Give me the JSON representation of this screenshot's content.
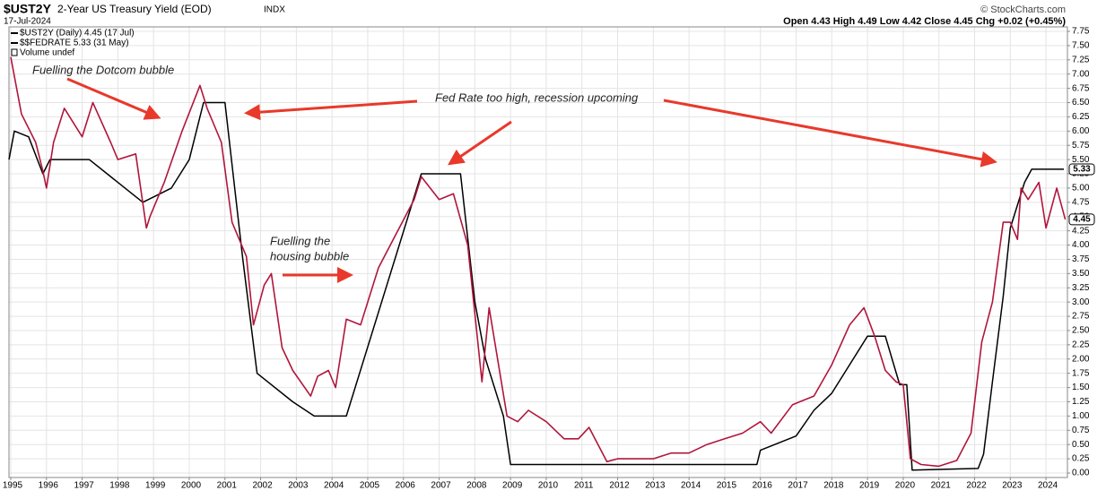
{
  "chart_data": {
    "type": "line",
    "title": "$UST2Y",
    "subtitle": "2-Year US Treasury Yield (EOD)",
    "exchange": "INDX",
    "date": "17-Jul-2024",
    "credit": "© StockCharts.com",
    "quote": "Open 4.43 High 4.49 Low 4.42 Close 4.45 Chg +0.02 (+0.45%)",
    "volume_note": "Volume undef",
    "annotations": [
      "Fuelling the Dotcom bubble",
      "Fed Rate too high, recession upcoming",
      "Fuelling the",
      "housing bubble"
    ],
    "grid": true,
    "y_axis_side": "right",
    "log_scale": false,
    "xlim": [
      1994.95,
      2024.6
    ],
    "xticks": [
      1995,
      1996,
      1997,
      1998,
      1999,
      2000,
      2001,
      2002,
      2003,
      2004,
      2005,
      2006,
      2007,
      2008,
      2009,
      2010,
      2011,
      2012,
      2013,
      2014,
      2015,
      2016,
      2017,
      2018,
      2019,
      2020,
      2021,
      2022,
      2023,
      2024
    ],
    "ylim": [
      0,
      7.75
    ],
    "yticks": [
      {
        "value": 0,
        "label": "0.00"
      },
      {
        "value": 0.25,
        "label": "0.25"
      },
      {
        "value": 0.5,
        "label": "0.50"
      },
      {
        "value": 0.75,
        "label": "0.75"
      },
      {
        "value": 1,
        "label": "1.00"
      },
      {
        "value": 1.25,
        "label": "1.25"
      },
      {
        "value": 1.5,
        "label": "1.50"
      },
      {
        "value": 1.75,
        "label": "1.75"
      },
      {
        "value": 2,
        "label": "2.00"
      },
      {
        "value": 2.25,
        "label": "2.25"
      },
      {
        "value": 2.5,
        "label": "2.50"
      },
      {
        "value": 2.75,
        "label": "2.75"
      },
      {
        "value": 3,
        "label": "3.00"
      },
      {
        "value": 3.25,
        "label": "3.25"
      },
      {
        "value": 3.5,
        "label": "3.50"
      },
      {
        "value": 3.75,
        "label": "3.75"
      },
      {
        "value": 4,
        "label": "4.00"
      },
      {
        "value": 4.25,
        "label": "4.25"
      },
      {
        "value": 4.5,
        "label": "4.50"
      },
      {
        "value": 4.75,
        "label": "4.75"
      },
      {
        "value": 5,
        "label": "5.00"
      },
      {
        "value": 5.25,
        "label": "5.25"
      },
      {
        "value": 5.5,
        "label": "5.50"
      },
      {
        "value": 5.75,
        "label": "5.75"
      },
      {
        "value": 6,
        "label": "6.00"
      },
      {
        "value": 6.25,
        "label": "6.25"
      },
      {
        "value": 6.5,
        "label": "6.50"
      },
      {
        "value": 6.75,
        "label": "6.75"
      },
      {
        "value": 7,
        "label": "7.00"
      },
      {
        "value": 7.25,
        "label": "7.25"
      },
      {
        "value": 7.5,
        "label": "7.50"
      },
      {
        "value": 7.75,
        "label": "7.75"
      }
    ],
    "series": [
      {
        "name": "$UST2Y (Daily) 4.45 (17 Jul)",
        "color": "#b0163c",
        "x": [
          1995.0,
          1995.3,
          1995.7,
          1995.9,
          1996.0,
          1996.2,
          1996.5,
          1997.0,
          1997.3,
          1997.8,
          1998.0,
          1998.5,
          1998.8,
          1998.9,
          1999.3,
          1999.8,
          2000.3,
          2000.5,
          2000.9,
          2001.2,
          2001.6,
          2001.8,
          2002.1,
          2002.3,
          2002.6,
          2002.9,
          2003.4,
          2003.6,
          2003.9,
          2004.1,
          2004.4,
          2004.8,
          2005.3,
          2005.8,
          2006.3,
          2006.5,
          2007.0,
          2007.4,
          2007.8,
          2008.2,
          2008.4,
          2008.9,
          2009.2,
          2009.5,
          2010.0,
          2010.5,
          2010.9,
          2011.2,
          2011.7,
          2012.0,
          2013.0,
          2013.5,
          2014.0,
          2014.5,
          2015.0,
          2015.5,
          2016.0,
          2016.3,
          2016.9,
          2017.5,
          2018.0,
          2018.5,
          2018.9,
          2019.2,
          2019.5,
          2019.8,
          2020.0,
          2020.2,
          2020.5,
          2021.0,
          2021.5,
          2021.9,
          2022.2,
          2022.5,
          2022.8,
          2023.0,
          2023.2,
          2023.3,
          2023.5,
          2023.8,
          2024.0,
          2024.3,
          2024.54
        ],
        "values": [
          7.3,
          6.3,
          5.8,
          5.3,
          5.0,
          5.8,
          6.4,
          5.9,
          6.5,
          5.8,
          5.5,
          5.6,
          4.3,
          4.5,
          5.1,
          6.0,
          6.8,
          6.4,
          5.8,
          4.4,
          3.8,
          2.6,
          3.3,
          3.5,
          2.2,
          1.8,
          1.35,
          1.7,
          1.8,
          1.5,
          2.7,
          2.6,
          3.6,
          4.2,
          4.8,
          5.2,
          4.8,
          4.9,
          4.0,
          1.6,
          2.9,
          1.0,
          0.9,
          1.1,
          0.9,
          0.6,
          0.6,
          0.8,
          0.2,
          0.25,
          0.25,
          0.35,
          0.35,
          0.5,
          0.6,
          0.7,
          0.9,
          0.7,
          1.2,
          1.35,
          1.9,
          2.6,
          2.9,
          2.4,
          1.8,
          1.6,
          1.55,
          0.25,
          0.15,
          0.12,
          0.22,
          0.7,
          2.3,
          3.0,
          4.4,
          4.4,
          4.1,
          5.0,
          4.8,
          5.1,
          4.3,
          5.0,
          4.45
        ]
      },
      {
        "name": "$$FEDRATE 5.33 (31 May)",
        "color": "#000000",
        "x": [
          1994.95,
          1995.1,
          1995.5,
          1995.9,
          1996.1,
          1997.2,
          1998.7,
          1999.5,
          2000.0,
          2000.4,
          2001.0,
          2001.5,
          2001.9,
          2002.9,
          2003.5,
          2004.4,
          2006.5,
          2007.6,
          2008.0,
          2008.3,
          2008.8,
          2009.0,
          2015.9,
          2016.0,
          2017.0,
          2017.5,
          2018.0,
          2018.5,
          2019.0,
          2019.5,
          2019.9,
          2020.1,
          2020.25,
          2022.1,
          2022.25,
          2022.5,
          2022.8,
          2023.0,
          2023.4,
          2023.6,
          2024.5
        ],
        "values": [
          5.5,
          6.0,
          5.9,
          5.25,
          5.5,
          5.5,
          4.75,
          5.0,
          5.5,
          6.5,
          6.5,
          3.75,
          1.75,
          1.25,
          1.0,
          1.0,
          5.25,
          5.25,
          3.0,
          2.0,
          1.0,
          0.15,
          0.15,
          0.4,
          0.65,
          1.1,
          1.4,
          1.9,
          2.4,
          2.4,
          1.55,
          1.55,
          0.05,
          0.08,
          0.33,
          1.6,
          3.1,
          4.3,
          5.1,
          5.33,
          5.33
        ]
      }
    ]
  }
}
